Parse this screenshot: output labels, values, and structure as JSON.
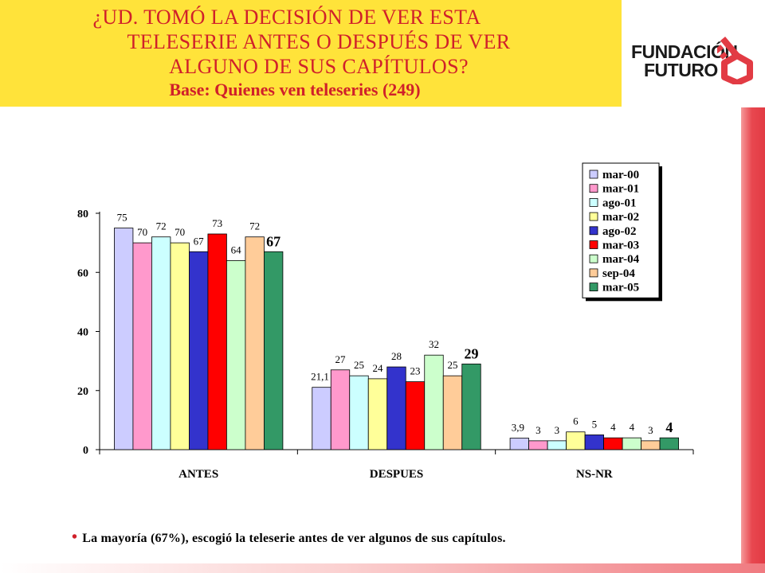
{
  "header": {
    "title_lines": [
      "¿UD. TOMÓ LA DECISIÓN DE VER ESTA",
      "TELESERIE ANTES O DESPUÉS DE VER",
      "ALGUNO DE SUS CAPÍTULOS?"
    ],
    "subtitle": "Base: Quienes ven teleseries (249)"
  },
  "logo": {
    "line1": "FUNDACIÓN",
    "line2": "FUTURO",
    "icon": "key-icon"
  },
  "note": {
    "bullet": "•",
    "text": "La mayoría (67%), escogió la teleserie antes de ver algunos de sus capítulos."
  },
  "colors": {
    "title": "#d0202a",
    "title_background": "#ffe33a",
    "accent": "#e23b44"
  },
  "chart_data": {
    "type": "bar",
    "categories": [
      "ANTES",
      "DESPUES",
      "NS-NR"
    ],
    "ylim": [
      0,
      80
    ],
    "yticks": [
      0,
      20,
      40,
      60,
      80
    ],
    "legend_position": "top-right",
    "grid": false,
    "series": [
      {
        "name": "mar-00",
        "color": "#ccccff",
        "values": [
          75,
          21.1,
          3.9
        ],
        "labels": [
          "75",
          "21,1",
          "3,9"
        ]
      },
      {
        "name": "mar-01",
        "color": "#ff99cc",
        "values": [
          70,
          27,
          3
        ],
        "labels": [
          "70",
          "27",
          "3"
        ]
      },
      {
        "name": "ago-01",
        "color": "#ccffff",
        "values": [
          72,
          25,
          3
        ],
        "labels": [
          "72",
          "25",
          "3"
        ]
      },
      {
        "name": "mar-02",
        "color": "#ffff99",
        "values": [
          70,
          24,
          6
        ],
        "labels": [
          "70",
          "24",
          "6"
        ]
      },
      {
        "name": "ago-02",
        "color": "#3333cc",
        "values": [
          67,
          28,
          5
        ],
        "labels": [
          "67",
          "28",
          "5"
        ]
      },
      {
        "name": "mar-03",
        "color": "#ff0000",
        "values": [
          73,
          23,
          4
        ],
        "labels": [
          "73",
          "23",
          "4"
        ]
      },
      {
        "name": "mar-04",
        "color": "#ccffcc",
        "values": [
          64,
          32,
          4
        ],
        "labels": [
          "64",
          "32",
          "4"
        ]
      },
      {
        "name": "sep-04",
        "color": "#ffcc99",
        "values": [
          72,
          25,
          3
        ],
        "labels": [
          "72",
          "25",
          "3"
        ]
      },
      {
        "name": "mar-05",
        "color": "#339966",
        "values": [
          67,
          29,
          4
        ],
        "labels": [
          "67",
          "29",
          "4"
        ],
        "emphasized": true
      }
    ]
  }
}
